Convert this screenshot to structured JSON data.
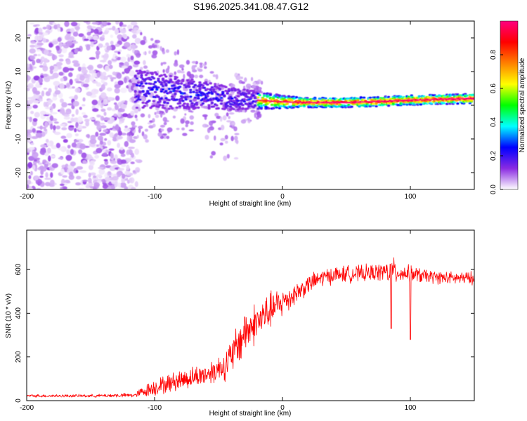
{
  "title": "S196.2025.341.08.47.G12",
  "chart_data": [
    {
      "type": "heatmap",
      "name": "spectrogram",
      "xlabel": "Height of straight line (km)",
      "ylabel": "Frequency (Hz)",
      "xlim": [
        -200,
        150
      ],
      "ylim": [
        -25,
        25
      ],
      "xticks": [
        -200,
        -100,
        0,
        100
      ],
      "yticks": [
        -20,
        -10,
        0,
        10,
        20
      ],
      "colorbar": {
        "label": "Normalized spectral amplitude",
        "range": [
          0.0,
          1.0
        ],
        "ticks": [
          0.0,
          0.2,
          0.4,
          0.6,
          0.8
        ],
        "colormap": [
          "#ffffff",
          "#8a2be2",
          "#0000ff",
          "#00ffff",
          "#00ff00",
          "#ffff00",
          "#ff8000",
          "#ff0000",
          "#ff0080"
        ]
      },
      "ridge": {
        "description_points_x": [
          -115,
          -100,
          -80,
          -60,
          -40,
          -20,
          0,
          20,
          50,
          80,
          100,
          150
        ],
        "description_points_y": [
          5,
          4.5,
          3.5,
          3,
          2,
          1.5,
          1,
          0.8,
          0.8,
          1.2,
          1.5,
          2
        ]
      }
    },
    {
      "type": "line",
      "name": "snr",
      "xlabel": "Height of straight line (km)",
      "ylabel": "SNR (10 * v/v)",
      "xlim": [
        -200,
        150
      ],
      "ylim": [
        0,
        780
      ],
      "xticks": [
        -200,
        -100,
        0,
        100
      ],
      "yticks": [
        0,
        200,
        400,
        600
      ],
      "series": [
        {
          "name": "SNR",
          "color": "#ff0000",
          "x": [
            -200,
            -150,
            -115,
            -110,
            -100,
            -80,
            -60,
            -45,
            -40,
            -35,
            -30,
            -20,
            -10,
            0,
            10,
            20,
            30,
            40,
            50,
            60,
            70,
            80,
            85,
            90,
            100,
            110,
            120,
            130,
            140,
            150
          ],
          "values": [
            22,
            22,
            25,
            40,
            60,
            95,
            120,
            160,
            200,
            250,
            310,
            360,
            410,
            450,
            490,
            530,
            560,
            575,
            580,
            580,
            585,
            590,
            590,
            585,
            580,
            570,
            565,
            560,
            560,
            560
          ],
          "noise_amplitude": [
            8,
            8,
            12,
            30,
            45,
            55,
            60,
            80,
            100,
            120,
            120,
            110,
            100,
            80,
            60,
            50,
            50,
            45,
            45,
            45,
            45,
            50,
            90,
            50,
            45,
            40,
            35,
            35,
            35,
            35
          ]
        }
      ]
    }
  ]
}
